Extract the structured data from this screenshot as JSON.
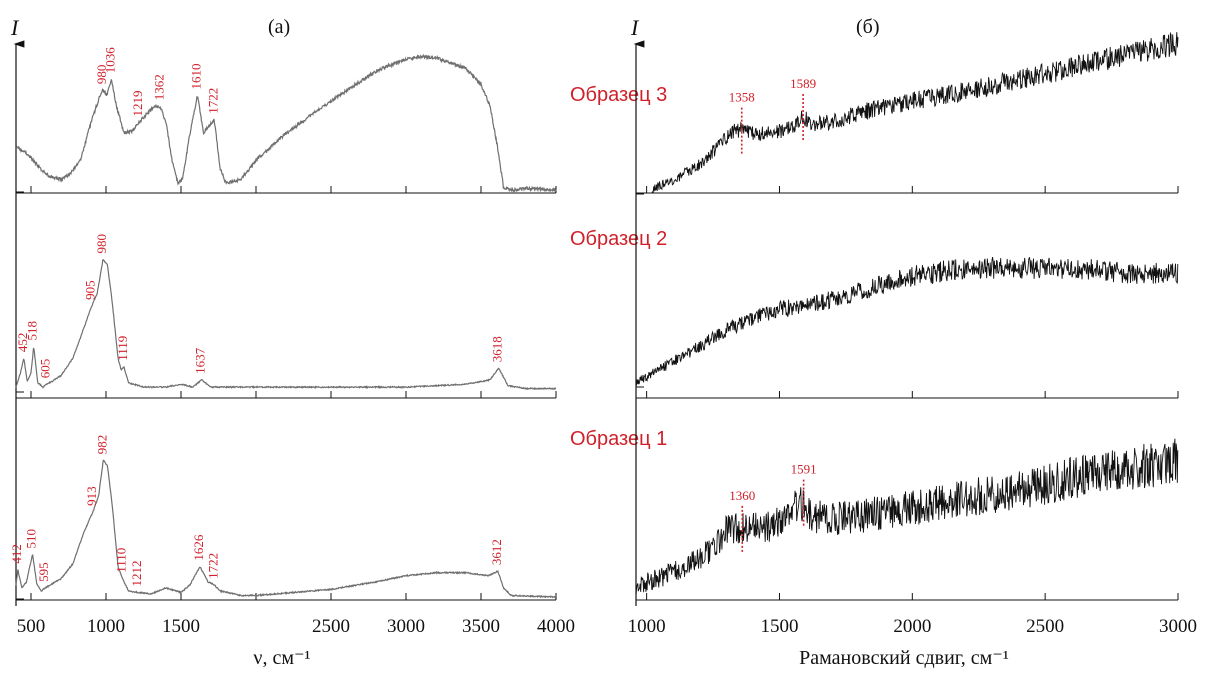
{
  "figure": {
    "panel_a_letter": "(а)",
    "panel_b_letter": "(б)",
    "y_axis_symbol": "I",
    "samples": [
      "Образец 3",
      "Образец 2",
      "Образец 1"
    ],
    "colors": {
      "ir_line": "#6f6f6f",
      "raman_line": "#111111",
      "annotation": "#d0202a"
    }
  },
  "chart_data": [
    {
      "type": "line",
      "panel": "(а)",
      "xlabel": "ν, см⁻¹",
      "ylabel": "I",
      "xlim": [
        400,
        4000
      ],
      "xticks": [
        500,
        1000,
        1500,
        2500,
        3000,
        3500,
        4000
      ],
      "grid": false,
      "series": [
        {
          "name": "Образец 3",
          "points": [
            [
              400,
              0.32
            ],
            [
              460,
              0.28
            ],
            [
              500,
              0.24
            ],
            [
              560,
              0.16
            ],
            [
              620,
              0.1
            ],
            [
              700,
              0.08
            ],
            [
              760,
              0.12
            ],
            [
              830,
              0.22
            ],
            [
              900,
              0.5
            ],
            [
              960,
              0.7
            ],
            [
              980,
              0.74
            ],
            [
              1005,
              0.7
            ],
            [
              1036,
              0.82
            ],
            [
              1070,
              0.62
            ],
            [
              1120,
              0.42
            ],
            [
              1180,
              0.44
            ],
            [
              1219,
              0.5
            ],
            [
              1270,
              0.56
            ],
            [
              1320,
              0.62
            ],
            [
              1362,
              0.62
            ],
            [
              1400,
              0.5
            ],
            [
              1440,
              0.22
            ],
            [
              1480,
              0.05
            ],
            [
              1510,
              0.08
            ],
            [
              1560,
              0.42
            ],
            [
              1610,
              0.7
            ],
            [
              1650,
              0.42
            ],
            [
              1690,
              0.48
            ],
            [
              1722,
              0.52
            ],
            [
              1760,
              0.16
            ],
            [
              1800,
              0.05
            ],
            [
              1900,
              0.08
            ],
            [
              2000,
              0.22
            ],
            [
              2200,
              0.42
            ],
            [
              2500,
              0.66
            ],
            [
              2800,
              0.88
            ],
            [
              3000,
              0.97
            ],
            [
              3100,
              0.99
            ],
            [
              3200,
              0.98
            ],
            [
              3400,
              0.9
            ],
            [
              3500,
              0.78
            ],
            [
              3560,
              0.62
            ],
            [
              3610,
              0.32
            ],
            [
              3650,
              0.02
            ],
            [
              3700,
              0.0
            ],
            [
              3800,
              0.01
            ],
            [
              4000,
              0.0
            ]
          ],
          "peak_labels": [
            980,
            1036,
            1219,
            1362,
            1610,
            1722
          ]
        },
        {
          "name": "Образец 2",
          "points": [
            [
              400,
              0.02
            ],
            [
              430,
              0.12
            ],
            [
              452,
              0.22
            ],
            [
              475,
              0.06
            ],
            [
              500,
              0.12
            ],
            [
              518,
              0.3
            ],
            [
              545,
              0.05
            ],
            [
              580,
              0.02
            ],
            [
              605,
              0.04
            ],
            [
              640,
              0.06
            ],
            [
              700,
              0.1
            ],
            [
              780,
              0.22
            ],
            [
              850,
              0.42
            ],
            [
              905,
              0.58
            ],
            [
              940,
              0.66
            ],
            [
              980,
              0.9
            ],
            [
              1010,
              0.86
            ],
            [
              1040,
              0.62
            ],
            [
              1080,
              0.22
            ],
            [
              1100,
              0.14
            ],
            [
              1119,
              0.16
            ],
            [
              1150,
              0.05
            ],
            [
              1250,
              0.02
            ],
            [
              1400,
              0.02
            ],
            [
              1500,
              0.04
            ],
            [
              1580,
              0.02
            ],
            [
              1637,
              0.07
            ],
            [
              1700,
              0.02
            ],
            [
              2000,
              0.02
            ],
            [
              2500,
              0.02
            ],
            [
              3000,
              0.02
            ],
            [
              3400,
              0.04
            ],
            [
              3560,
              0.07
            ],
            [
              3618,
              0.15
            ],
            [
              3680,
              0.03
            ],
            [
              3800,
              0.01
            ],
            [
              4000,
              0.01
            ]
          ],
          "peak_labels": [
            452,
            518,
            605,
            905,
            980,
            1119,
            1637,
            3618
          ]
        },
        {
          "name": "Образец 1",
          "points": [
            [
              400,
              0.08
            ],
            [
              412,
              0.18
            ],
            [
              440,
              0.06
            ],
            [
              470,
              0.1
            ],
            [
              510,
              0.28
            ],
            [
              540,
              0.08
            ],
            [
              570,
              0.04
            ],
            [
              595,
              0.06
            ],
            [
              630,
              0.08
            ],
            [
              700,
              0.12
            ],
            [
              780,
              0.22
            ],
            [
              850,
              0.42
            ],
            [
              913,
              0.56
            ],
            [
              950,
              0.66
            ],
            [
              982,
              0.9
            ],
            [
              1010,
              0.86
            ],
            [
              1040,
              0.62
            ],
            [
              1080,
              0.2
            ],
            [
              1110,
              0.12
            ],
            [
              1150,
              0.04
            ],
            [
              1212,
              0.03
            ],
            [
              1300,
              0.02
            ],
            [
              1400,
              0.06
            ],
            [
              1500,
              0.03
            ],
            [
              1560,
              0.08
            ],
            [
              1626,
              0.2
            ],
            [
              1680,
              0.1
            ],
            [
              1722,
              0.08
            ],
            [
              1760,
              0.04
            ],
            [
              1900,
              0.01
            ],
            [
              2000,
              0.01
            ],
            [
              2500,
              0.05
            ],
            [
              2800,
              0.1
            ],
            [
              3000,
              0.14
            ],
            [
              3200,
              0.16
            ],
            [
              3400,
              0.16
            ],
            [
              3550,
              0.14
            ],
            [
              3612,
              0.17
            ],
            [
              3650,
              0.06
            ],
            [
              3700,
              0.01
            ],
            [
              4000,
              0.0
            ]
          ],
          "peak_labels": [
            412,
            510,
            595,
            913,
            982,
            1110,
            1212,
            1626,
            1722,
            3612
          ]
        }
      ]
    },
    {
      "type": "line",
      "panel": "(б)",
      "xlabel": "Рамановский сдвиг, см⁻¹",
      "ylabel": "I",
      "xlim": [
        960,
        3000
      ],
      "xticks": [
        1000,
        1500,
        2000,
        2500,
        3000
      ],
      "grid": false,
      "series": [
        {
          "name": "Образец 3",
          "points": [
            [
              1020,
              0.02
            ],
            [
              1100,
              0.08
            ],
            [
              1200,
              0.18
            ],
            [
              1280,
              0.32
            ],
            [
              1330,
              0.4
            ],
            [
              1358,
              0.41
            ],
            [
              1420,
              0.38
            ],
            [
              1500,
              0.4
            ],
            [
              1560,
              0.44
            ],
            [
              1589,
              0.5
            ],
            [
              1620,
              0.44
            ],
            [
              1700,
              0.46
            ],
            [
              1800,
              0.52
            ],
            [
              2000,
              0.6
            ],
            [
              2200,
              0.66
            ],
            [
              2400,
              0.74
            ],
            [
              2600,
              0.82
            ],
            [
              2800,
              0.9
            ],
            [
              3000,
              0.98
            ]
          ],
          "peak_labels": [
            1358,
            1589
          ]
        },
        {
          "name": "Образец 2",
          "points": [
            [
              960,
              0.02
            ],
            [
              1100,
              0.18
            ],
            [
              1200,
              0.3
            ],
            [
              1300,
              0.42
            ],
            [
              1400,
              0.52
            ],
            [
              1500,
              0.58
            ],
            [
              1700,
              0.66
            ],
            [
              1800,
              0.72
            ],
            [
              1900,
              0.78
            ],
            [
              2000,
              0.84
            ],
            [
              2200,
              0.9
            ],
            [
              2400,
              0.9
            ],
            [
              2600,
              0.9
            ],
            [
              2800,
              0.86
            ],
            [
              3000,
              0.86
            ]
          ],
          "peak_labels": []
        },
        {
          "name": "Образец 1",
          "points": [
            [
              960,
              0.08
            ],
            [
              1050,
              0.14
            ],
            [
              1150,
              0.22
            ],
            [
              1250,
              0.34
            ],
            [
              1300,
              0.46
            ],
            [
              1360,
              0.48
            ],
            [
              1450,
              0.48
            ],
            [
              1520,
              0.54
            ],
            [
              1560,
              0.62
            ],
            [
              1591,
              0.66
            ],
            [
              1620,
              0.56
            ],
            [
              1700,
              0.54
            ],
            [
              1800,
              0.56
            ],
            [
              2000,
              0.62
            ],
            [
              2200,
              0.68
            ],
            [
              2400,
              0.74
            ],
            [
              2600,
              0.82
            ],
            [
              2800,
              0.88
            ],
            [
              3000,
              0.94
            ]
          ],
          "peak_labels": [
            1360,
            1591
          ]
        }
      ]
    }
  ]
}
